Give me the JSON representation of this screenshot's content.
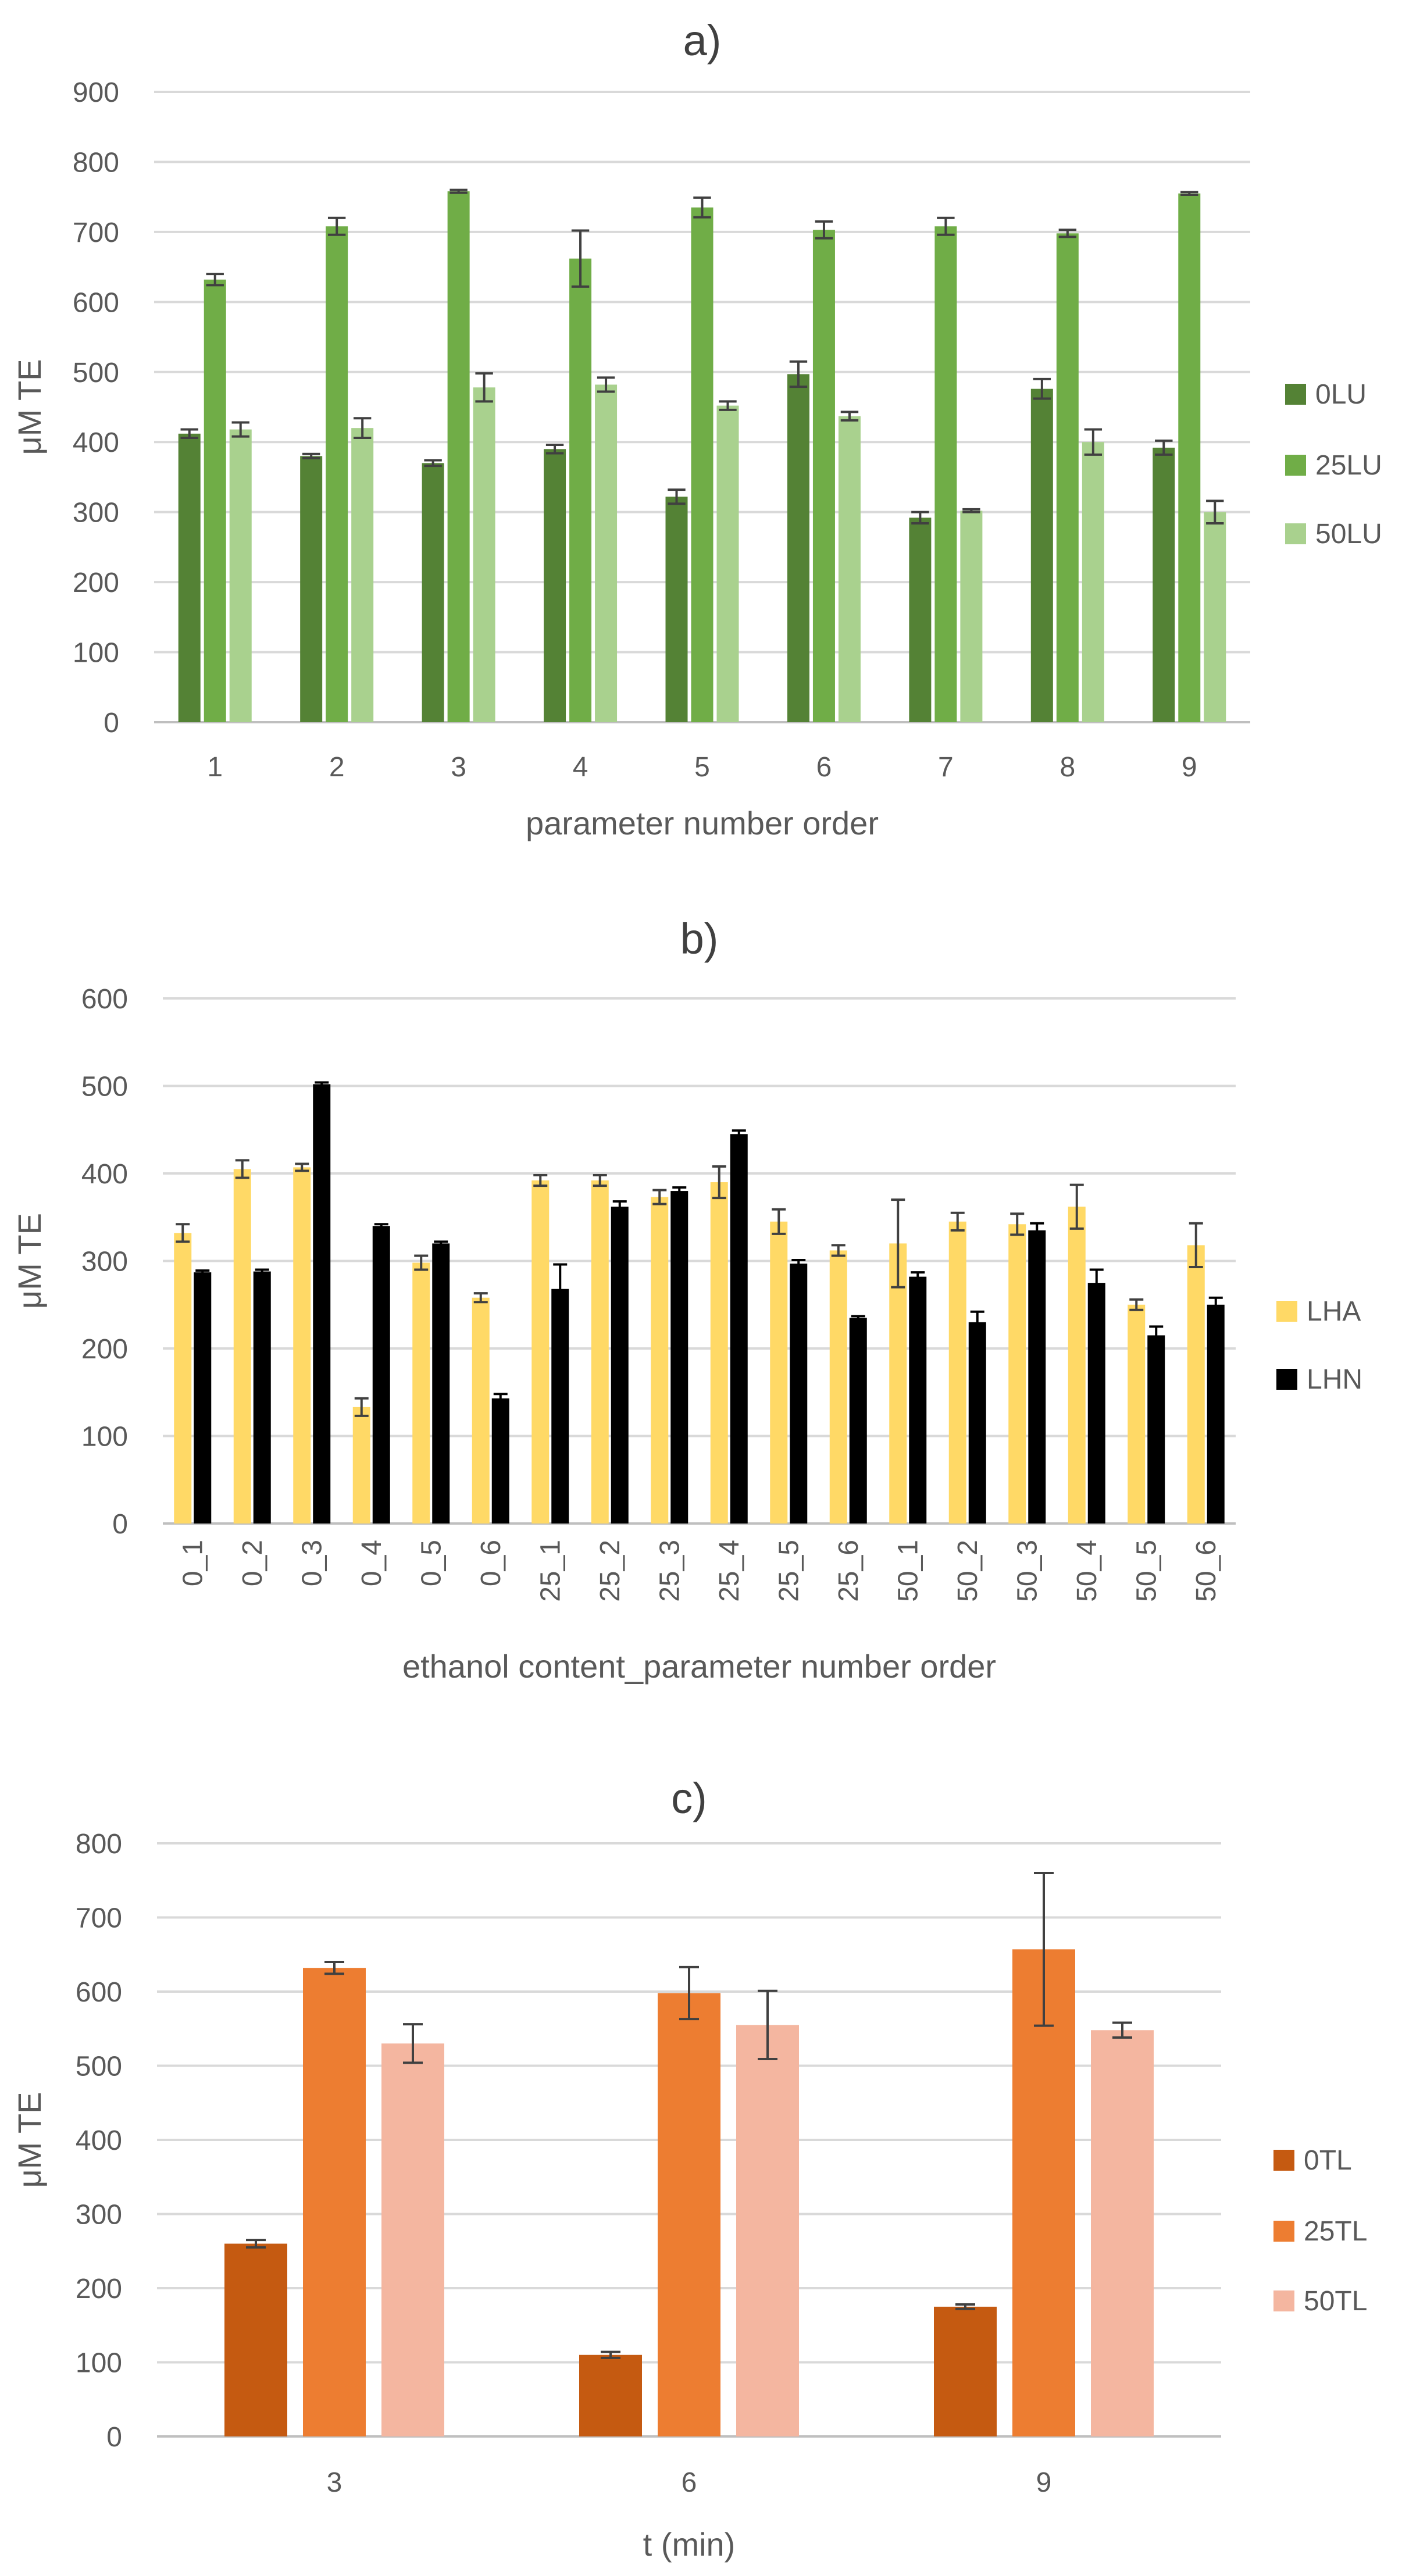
{
  "chart_data": [
    {
      "type": "bar",
      "title": "a)",
      "xlabel": "parameter number order",
      "ylabel": "μM TE",
      "ylim": [
        0,
        900
      ],
      "yticks": [
        0,
        100,
        200,
        300,
        400,
        500,
        600,
        700,
        800,
        900
      ],
      "grid": true,
      "legend": "right",
      "categories": [
        "1",
        "2",
        "3",
        "4",
        "5",
        "6",
        "7",
        "8",
        "9"
      ],
      "series": [
        {
          "name": "0LU",
          "color": "#548235",
          "values": [
            412,
            380,
            370,
            390,
            322,
            497,
            292,
            476,
            392
          ],
          "errors": [
            6,
            3,
            4,
            6,
            10,
            18,
            8,
            14,
            10
          ]
        },
        {
          "name": "25LU",
          "color": "#70AD47",
          "values": [
            632,
            708,
            758,
            662,
            735,
            703,
            708,
            698,
            755
          ],
          "errors": [
            8,
            12,
            2,
            40,
            14,
            12,
            12,
            5,
            2
          ]
        },
        {
          "name": "50LU",
          "color": "#A9D18E",
          "values": [
            418,
            420,
            478,
            482,
            452,
            437,
            302,
            400,
            300
          ],
          "errors": [
            10,
            14,
            20,
            10,
            6,
            6,
            2,
            18,
            16
          ]
        }
      ]
    },
    {
      "type": "bar",
      "title": "b)",
      "xlabel": "ethanol content_parameter number order",
      "ylabel": "μM TE",
      "ylim": [
        0,
        600
      ],
      "yticks": [
        0,
        100,
        200,
        300,
        400,
        500,
        600
      ],
      "grid": true,
      "legend": "right",
      "categories": [
        "0_1",
        "0_2",
        "0_3",
        "0_4",
        "0_5",
        "0_6",
        "25_1",
        "25_2",
        "25_3",
        "25_4",
        "25_5",
        "25_6",
        "50_1",
        "50_2",
        "50_3",
        "50_4",
        "50_5",
        "50_6"
      ],
      "series": [
        {
          "name": "LHA",
          "color": "#FFD966",
          "values": [
            332,
            405,
            407,
            133,
            298,
            258,
            392,
            392,
            373,
            390,
            345,
            312,
            320,
            345,
            342,
            362,
            250,
            318
          ],
          "errors": [
            10,
            10,
            4,
            10,
            8,
            5,
            6,
            6,
            8,
            18,
            14,
            6,
            50,
            10,
            12,
            25,
            6,
            25
          ]
        },
        {
          "name": "LHN",
          "color": "#000000",
          "values": [
            287,
            288,
            502,
            340,
            320,
            143,
            268,
            362,
            380,
            445,
            297,
            235,
            282,
            230,
            335,
            275,
            215,
            250
          ],
          "errors": [
            2,
            2,
            2,
            2,
            2,
            5,
            28,
            6,
            4,
            4,
            4,
            2,
            5,
            12,
            8,
            15,
            10,
            8
          ]
        }
      ]
    },
    {
      "type": "bar",
      "title": "c)",
      "xlabel": "t (min)",
      "ylabel": "μM TE",
      "ylim": [
        0,
        800
      ],
      "yticks": [
        0,
        100,
        200,
        300,
        400,
        500,
        600,
        700,
        800
      ],
      "grid": true,
      "legend": "right",
      "categories": [
        "3",
        "6",
        "9"
      ],
      "series": [
        {
          "name": "0TL",
          "color": "#C55A11",
          "values": [
            260,
            110,
            175
          ],
          "errors": [
            5,
            4,
            3
          ]
        },
        {
          "name": "25TL",
          "color": "#ED7D31",
          "values": [
            632,
            598,
            657
          ],
          "errors": [
            8,
            35,
            103
          ]
        },
        {
          "name": "50TL",
          "color": "#F4B6A0",
          "values": [
            530,
            555,
            548
          ],
          "errors": [
            26,
            46,
            10
          ]
        }
      ]
    }
  ]
}
